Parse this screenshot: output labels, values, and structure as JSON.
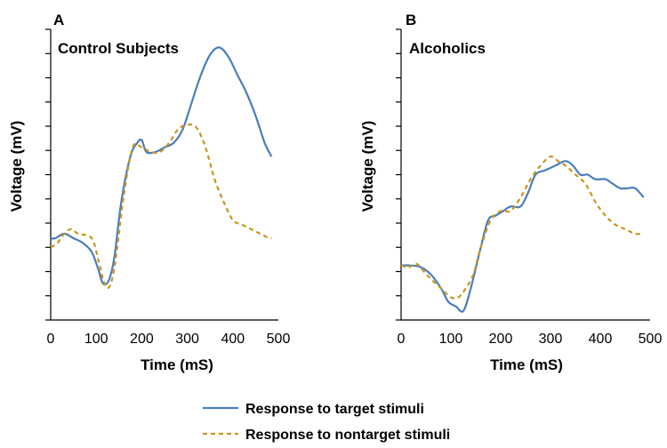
{
  "chart_data": [
    {
      "type": "line",
      "panel_letter": "A",
      "title": "Control Subjects",
      "xlabel": "Time  (mS)",
      "ylabel": "Voltage (mV)",
      "xlim": [
        0,
        500
      ],
      "xticks": [
        "0",
        "100",
        "200",
        "300",
        "400",
        "500"
      ],
      "y_major_tick_count": 12,
      "grid": false,
      "series": [
        {
          "name": "Response to target stimuli",
          "color": "#4a7ebb",
          "style": "solid",
          "points": [
            [
              0,
              -1.5
            ],
            [
              10,
              -1.5
            ],
            [
              30,
              -1.25
            ],
            [
              50,
              -1.5
            ],
            [
              70,
              -1.75
            ],
            [
              90,
              -2.25
            ],
            [
              105,
              -3.25
            ],
            [
              115,
              -4.0
            ],
            [
              128,
              -3.8
            ],
            [
              140,
              -2.5
            ],
            [
              155,
              0.5
            ],
            [
              175,
              3.0
            ],
            [
              190,
              3.75
            ],
            [
              200,
              3.9
            ],
            [
              210,
              3.25
            ],
            [
              230,
              3.25
            ],
            [
              250,
              3.5
            ],
            [
              270,
              3.75
            ],
            [
              290,
              4.5
            ],
            [
              310,
              6.0
            ],
            [
              330,
              7.5
            ],
            [
              350,
              8.6
            ],
            [
              370,
              9.0
            ],
            [
              390,
              8.5
            ],
            [
              410,
              7.5
            ],
            [
              430,
              6.5
            ],
            [
              450,
              5.25
            ],
            [
              470,
              3.75
            ],
            [
              485,
              3.0
            ]
          ]
        },
        {
          "name": "Response to nontarget stimuli",
          "color": "#c8961e",
          "style": "dashed",
          "points": [
            [
              0,
              -2.0
            ],
            [
              15,
              -1.75
            ],
            [
              30,
              -1.25
            ],
            [
              45,
              -1.0
            ],
            [
              60,
              -1.25
            ],
            [
              90,
              -1.5
            ],
            [
              105,
              -2.75
            ],
            [
              115,
              -3.75
            ],
            [
              125,
              -4.25
            ],
            [
              135,
              -3.75
            ],
            [
              145,
              -2.25
            ],
            [
              160,
              0.75
            ],
            [
              180,
              3.5
            ],
            [
              200,
              3.5
            ],
            [
              220,
              3.25
            ],
            [
              240,
              3.25
            ],
            [
              260,
              3.75
            ],
            [
              280,
              4.5
            ],
            [
              300,
              4.75
            ],
            [
              320,
              4.6
            ],
            [
              340,
              3.5
            ],
            [
              360,
              1.75
            ],
            [
              380,
              0.5
            ],
            [
              400,
              -0.5
            ],
            [
              420,
              -0.75
            ],
            [
              440,
              -1.0
            ],
            [
              460,
              -1.25
            ],
            [
              480,
              -1.5
            ],
            [
              485,
              -1.5
            ]
          ]
        }
      ]
    },
    {
      "type": "line",
      "panel_letter": "B",
      "title": "Alcoholics",
      "xlabel": "Time  (mS)",
      "ylabel": "Voltage (mV)",
      "xlim": [
        0,
        500
      ],
      "xticks": [
        "0",
        "100",
        "200",
        "300",
        "400",
        "500"
      ],
      "y_major_tick_count": 12,
      "grid": false,
      "series": [
        {
          "name": "Response to target stimuli",
          "color": "#4a7ebb",
          "style": "solid",
          "points": [
            [
              0,
              -3.0
            ],
            [
              20,
              -3.0
            ],
            [
              40,
              -3.1
            ],
            [
              60,
              -3.5
            ],
            [
              80,
              -4.25
            ],
            [
              95,
              -5.0
            ],
            [
              110,
              -5.25
            ],
            [
              125,
              -5.5
            ],
            [
              140,
              -4.25
            ],
            [
              160,
              -2.0
            ],
            [
              175,
              -0.5
            ],
            [
              190,
              -0.25
            ],
            [
              205,
              0
            ],
            [
              220,
              0.25
            ],
            [
              240,
              0.25
            ],
            [
              255,
              1.0
            ],
            [
              270,
              2.0
            ],
            [
              290,
              2.25
            ],
            [
              310,
              2.5
            ],
            [
              330,
              2.75
            ],
            [
              345,
              2.5
            ],
            [
              360,
              2.0
            ],
            [
              375,
              2.0
            ],
            [
              390,
              1.75
            ],
            [
              410,
              1.75
            ],
            [
              425,
              1.5
            ],
            [
              440,
              1.25
            ],
            [
              455,
              1.25
            ],
            [
              470,
              1.25
            ],
            [
              487,
              0.75
            ]
          ]
        },
        {
          "name": "Response to nontarget stimuli",
          "color": "#c8961e",
          "style": "dashed",
          "points": [
            [
              0,
              -3.0
            ],
            [
              15,
              -3.1
            ],
            [
              30,
              -2.9
            ],
            [
              45,
              -3.3
            ],
            [
              60,
              -3.75
            ],
            [
              80,
              -4.25
            ],
            [
              100,
              -4.75
            ],
            [
              115,
              -4.75
            ],
            [
              130,
              -4.25
            ],
            [
              145,
              -3.5
            ],
            [
              160,
              -2.0
            ],
            [
              180,
              -0.5
            ],
            [
              200,
              0
            ],
            [
              220,
              0
            ],
            [
              240,
              0.75
            ],
            [
              260,
              1.75
            ],
            [
              280,
              2.5
            ],
            [
              300,
              3.0
            ],
            [
              315,
              2.75
            ],
            [
              330,
              2.5
            ],
            [
              350,
              2.0
            ],
            [
              370,
              1.5
            ],
            [
              390,
              0.5
            ],
            [
              410,
              -0.25
            ],
            [
              430,
              -0.75
            ],
            [
              450,
              -1.0
            ],
            [
              470,
              -1.25
            ],
            [
              487,
              -1.25
            ]
          ]
        }
      ]
    }
  ],
  "legend": {
    "placement": "bottom-center",
    "entries": [
      {
        "label": "Response to target stimuli",
        "color": "#4a7ebb",
        "style": "solid"
      },
      {
        "label": "Response to nontarget stimuli",
        "color": "#c8961e",
        "style": "dashed"
      }
    ]
  }
}
